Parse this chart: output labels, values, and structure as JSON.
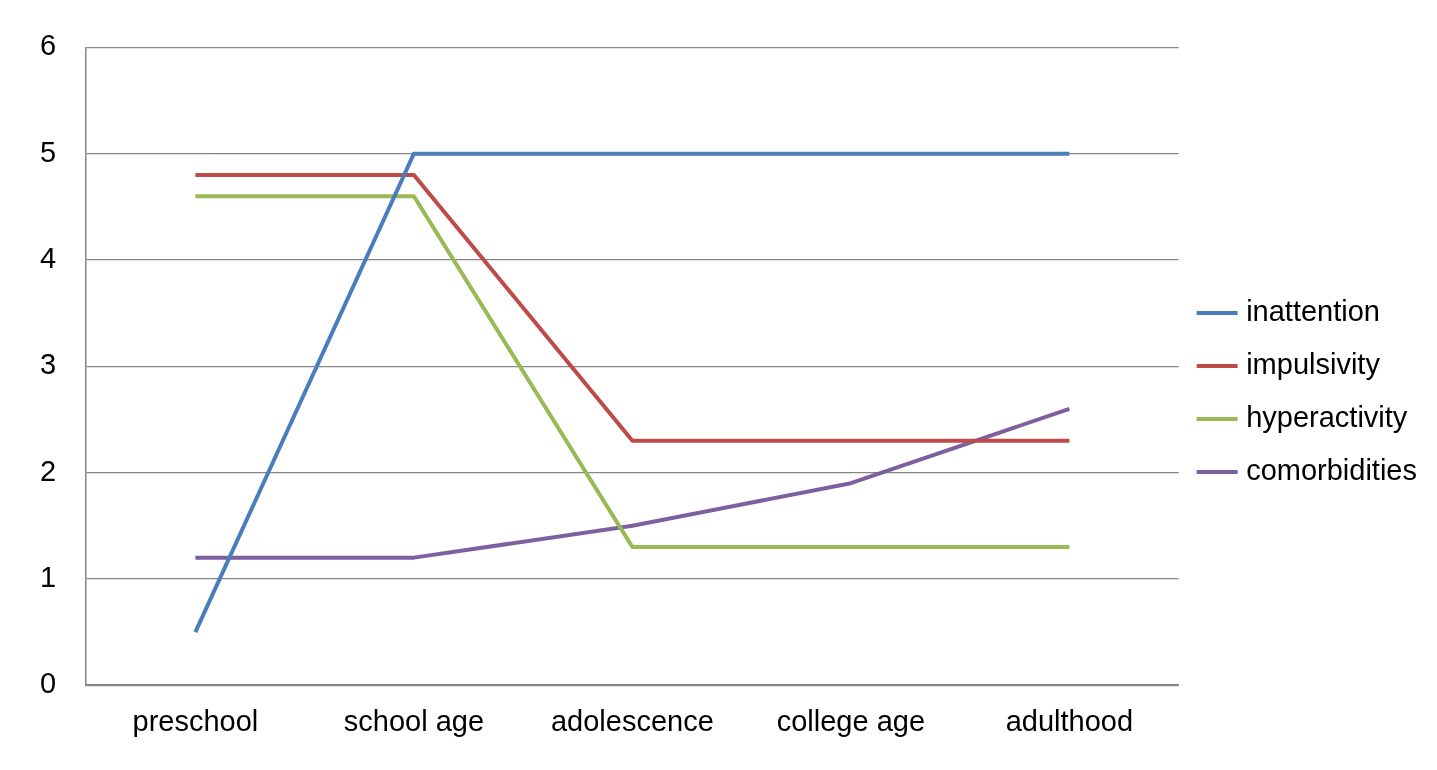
{
  "chart_data": {
    "type": "line",
    "categories": [
      "preschool",
      "school age",
      "adolescence",
      "college age",
      "adulthood"
    ],
    "series": [
      {
        "name": "inattention",
        "color": "#4a7ebb",
        "values": [
          0.5,
          5,
          5,
          5,
          5
        ]
      },
      {
        "name": "impulsivity",
        "color": "#be4b48",
        "values": [
          4.8,
          4.8,
          2.3,
          2.3,
          2.3
        ]
      },
      {
        "name": "hyperactivity",
        "color": "#98b954",
        "values": [
          4.6,
          4.6,
          1.3,
          1.3,
          1.3
        ]
      },
      {
        "name": "comorbidities",
        "color": "#7d60a0",
        "values": [
          1.2,
          1.2,
          1.5,
          1.9,
          2.6
        ]
      }
    ],
    "ylim": [
      0,
      6
    ],
    "yticks": [
      0,
      1,
      2,
      3,
      4,
      5,
      6
    ],
    "grid": "y",
    "legend": "right",
    "marker": "none",
    "line_style": "solid"
  }
}
